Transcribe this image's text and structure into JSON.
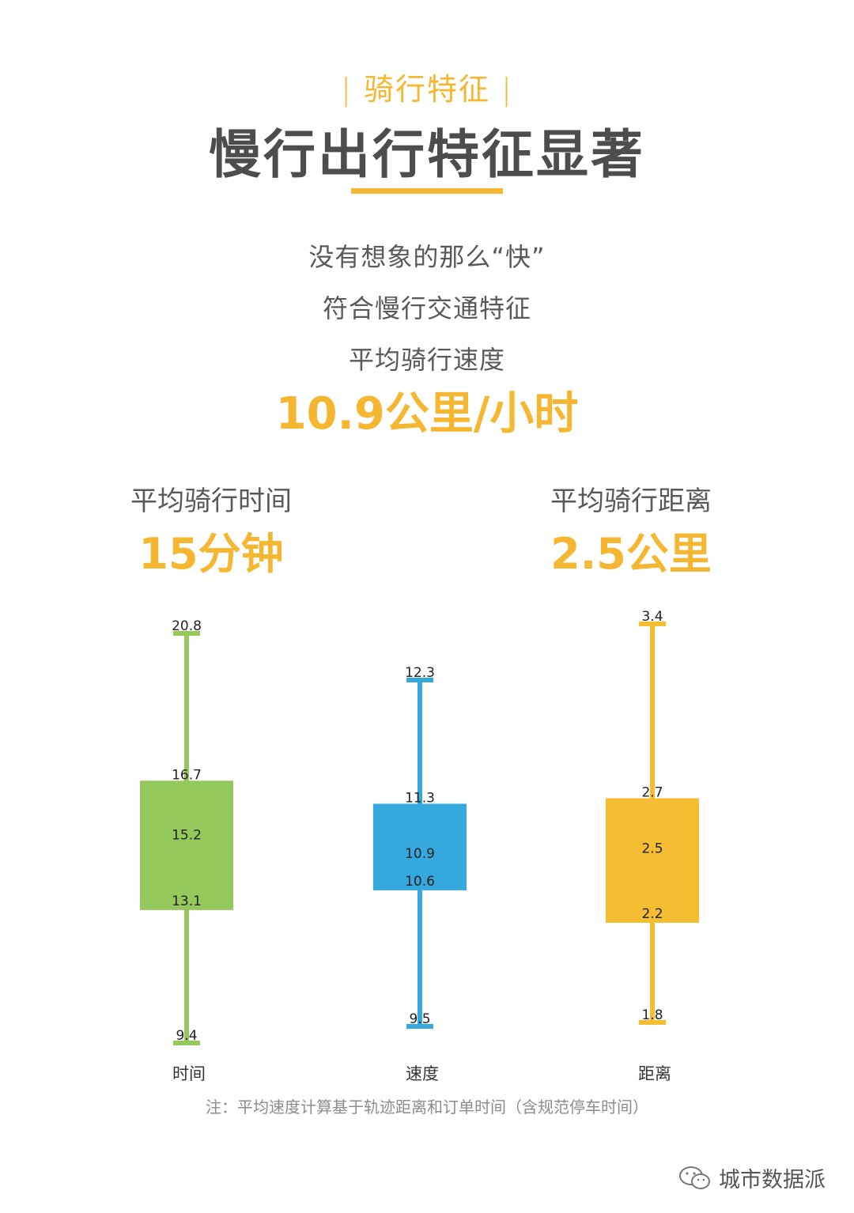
{
  "header": {
    "section_tag": "骑行特征",
    "title": "慢行出行特征显著"
  },
  "summary": {
    "line1": "没有想象的那么“快”",
    "line2": "符合慢行交通特征",
    "line3": "平均骑行速度",
    "speed_value": "10.9公里/小时"
  },
  "stats": {
    "time_label": "平均骑行时间",
    "time_value": "15分钟",
    "distance_label": "平均骑行距离",
    "distance_value": "2.5公里"
  },
  "chart_data": {
    "type": "boxplot",
    "title": "",
    "xlabel": "",
    "ylabel": "",
    "grid": false,
    "categories": [
      "时间",
      "速度",
      "距离"
    ],
    "series": [
      {
        "category": "时间",
        "max": 20.8,
        "q3": 16.7,
        "median": 15.2,
        "q1": 13.1,
        "min": 9.4,
        "color": "#94c85b"
      },
      {
        "category": "速度",
        "max": 12.3,
        "q3": 11.3,
        "median": 10.9,
        "q1": 10.6,
        "min": 9.5,
        "color": "#35a8de"
      },
      {
        "category": "距离",
        "max": 3.4,
        "q3": 2.7,
        "median": 2.5,
        "q1": 2.2,
        "min": 1.8,
        "color": "#f5bd32"
      }
    ]
  },
  "footer": {
    "note": "注：平均速度计算基于轨迹距离和订单时间（含规范停车时间）",
    "brand": "城市数据派",
    "brand_icon": "wechat-icon"
  }
}
